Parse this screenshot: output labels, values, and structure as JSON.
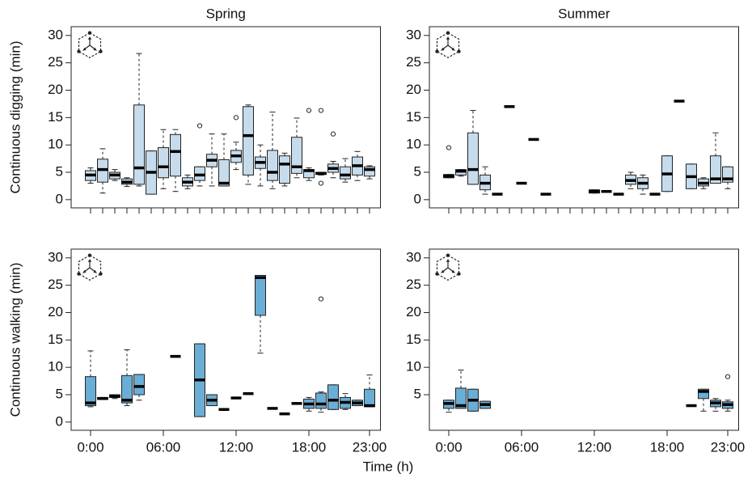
{
  "chart_data": [
    {
      "type": "box",
      "title": "Spring",
      "ylabel": "Continuous digging (min)",
      "color": "#c6dcec",
      "xlim": [
        -1.6,
        23.9
      ],
      "xticks": [
        0,
        1,
        2,
        3,
        4,
        5,
        6,
        7,
        8,
        9,
        10,
        11,
        12,
        13,
        14,
        15,
        16,
        17,
        18,
        19,
        20,
        21,
        22,
        23
      ],
      "show_xtick_labels": false,
      "ylim": [
        -1.5,
        31.6
      ],
      "yticks": [
        0,
        5,
        10,
        15,
        20,
        25,
        30
      ],
      "boxes": [
        {
          "x": 0,
          "low": 3,
          "q1": 3.5,
          "median": 4.5,
          "q3": 5.3,
          "high": 5.8
        },
        {
          "x": 1,
          "low": 1.2,
          "q1": 3.2,
          "median": 5.5,
          "q3": 7.4,
          "high": 9.3
        },
        {
          "x": 2,
          "low": 3.5,
          "q1": 3.8,
          "median": 4.5,
          "q3": 5,
          "high": 5.5
        },
        {
          "x": 3,
          "low": 2.4,
          "q1": 2.8,
          "median": 3.2,
          "q3": 3.8,
          "high": 4
        },
        {
          "x": 4,
          "low": 2.5,
          "q1": 2.8,
          "median": 5.8,
          "q3": 17.3,
          "high": 26.7
        },
        {
          "x": 5,
          "low": 1,
          "q1": 1,
          "median": 5,
          "q3": 8.9,
          "high": 8.9
        },
        {
          "x": 6,
          "low": 2,
          "q1": 4,
          "median": 6,
          "q3": 9.5,
          "high": 12.8
        },
        {
          "x": 7,
          "low": 1.5,
          "q1": 4.3,
          "median": 8.8,
          "q3": 11.9,
          "high": 12.8
        },
        {
          "x": 8,
          "low": 2,
          "q1": 2.5,
          "median": 3.2,
          "q3": 4,
          "high": 4.5
        },
        {
          "x": 9,
          "low": 2.5,
          "q1": 3.5,
          "median": 4.5,
          "q3": 6,
          "high": 6,
          "outliers": [
            13.5
          ]
        },
        {
          "x": 10,
          "low": 2.5,
          "q1": 6,
          "median": 7.2,
          "q3": 8.3,
          "high": 12
        },
        {
          "x": 11,
          "low": 2.5,
          "q1": 2.5,
          "median": 3,
          "q3": 7.3,
          "high": 12
        },
        {
          "x": 12,
          "low": 5.5,
          "q1": 6.8,
          "median": 8,
          "q3": 9,
          "high": 10.5,
          "outliers": [
            15
          ]
        },
        {
          "x": 13,
          "low": 2.8,
          "q1": 4.5,
          "median": 11.7,
          "q3": 17,
          "high": 17.3
        },
        {
          "x": 14,
          "low": 2.5,
          "q1": 5.7,
          "median": 6.8,
          "q3": 7.8,
          "high": 10
        },
        {
          "x": 15,
          "low": 2,
          "q1": 3.5,
          "median": 5,
          "q3": 9,
          "high": 16
        },
        {
          "x": 16,
          "low": 2.5,
          "q1": 3,
          "median": 6.5,
          "q3": 8,
          "high": 8.5
        },
        {
          "x": 17,
          "low": 4,
          "q1": 4.8,
          "median": 6,
          "q3": 11.4,
          "high": 14.9
        },
        {
          "x": 18,
          "low": 3.5,
          "q1": 4,
          "median": 5.3,
          "q3": 5.5,
          "high": 5.8,
          "outliers": [
            16.3
          ]
        },
        {
          "x": 19,
          "low": 4.5,
          "q1": 4.6,
          "median": 4.8,
          "q3": 5,
          "high": 5,
          "outliers": [
            16.3,
            3
          ]
        },
        {
          "x": 20,
          "low": 4,
          "q1": 5,
          "median": 5.7,
          "q3": 6.5,
          "high": 7,
          "outliers": [
            12
          ]
        },
        {
          "x": 21,
          "low": 3.2,
          "q1": 3.8,
          "median": 4.5,
          "q3": 6,
          "high": 7.5
        },
        {
          "x": 22,
          "low": 3.5,
          "q1": 4.5,
          "median": 6.2,
          "q3": 7.8,
          "high": 8.8
        },
        {
          "x": 23,
          "low": 3.8,
          "q1": 4.3,
          "median": 5.5,
          "q3": 6,
          "high": 6.2
        }
      ]
    },
    {
      "type": "box",
      "title": "Summer",
      "color": "#c6dcec",
      "xlim": [
        -1.6,
        23.9
      ],
      "xticks": [
        0,
        1,
        2,
        3,
        4,
        5,
        6,
        7,
        8,
        9,
        10,
        11,
        12,
        13,
        14,
        15,
        16,
        17,
        18,
        19,
        20,
        21,
        22,
        23
      ],
      "show_xtick_labels": false,
      "ylim": [
        -1.5,
        31.6
      ],
      "yticks": [
        0,
        5,
        10,
        15,
        20,
        25,
        30
      ],
      "boxes": [
        {
          "x": 0,
          "low": 4,
          "q1": 4,
          "median": 4.3,
          "q3": 4.6,
          "high": 4.6,
          "outliers": [
            9.5
          ]
        },
        {
          "x": 1,
          "low": 4.3,
          "q1": 4.5,
          "median": 5.2,
          "q3": 5.5,
          "high": 5.5
        },
        {
          "x": 2,
          "low": 2.8,
          "q1": 2.8,
          "median": 5.5,
          "q3": 12.2,
          "high": 16.3
        },
        {
          "x": 3,
          "low": 1,
          "q1": 1.8,
          "median": 3,
          "q3": 4.5,
          "high": 6
        },
        {
          "x": 4,
          "low": 1,
          "q1": 1,
          "median": 1,
          "q3": 1,
          "high": 1
        },
        {
          "x": 5,
          "low": 17,
          "q1": 17,
          "median": 17,
          "q3": 17,
          "high": 17
        },
        {
          "x": 6,
          "low": 3,
          "q1": 3,
          "median": 3,
          "q3": 3,
          "high": 3
        },
        {
          "x": 7,
          "low": 11,
          "q1": 11,
          "median": 11,
          "q3": 11,
          "high": 11
        },
        {
          "x": 8,
          "low": 1,
          "q1": 1,
          "median": 1,
          "q3": 1,
          "high": 1
        },
        {
          "x": 12,
          "low": 1.2,
          "q1": 1.2,
          "median": 1.5,
          "q3": 1.8,
          "high": 1.8
        },
        {
          "x": 13,
          "low": 1.5,
          "q1": 1.5,
          "median": 1.5,
          "q3": 1.5,
          "high": 1.5
        },
        {
          "x": 14,
          "low": 1,
          "q1": 1,
          "median": 1,
          "q3": 1,
          "high": 1
        },
        {
          "x": 15,
          "low": 2,
          "q1": 2.8,
          "median": 3.5,
          "q3": 4.5,
          "high": 5
        },
        {
          "x": 16,
          "low": 1,
          "q1": 2,
          "median": 3,
          "q3": 4,
          "high": 4.5
        },
        {
          "x": 17,
          "low": 1,
          "q1": 1,
          "median": 1,
          "q3": 1,
          "high": 1
        },
        {
          "x": 18,
          "low": 1.5,
          "q1": 1.5,
          "median": 4.7,
          "q3": 8,
          "high": 8
        },
        {
          "x": 19,
          "low": 18,
          "q1": 18,
          "median": 18,
          "q3": 18,
          "high": 18
        },
        {
          "x": 20,
          "low": 2,
          "q1": 2,
          "median": 4.2,
          "q3": 6.5,
          "high": 6.5
        },
        {
          "x": 21,
          "low": 2,
          "q1": 2.5,
          "median": 3,
          "q3": 3.8,
          "high": 4
        },
        {
          "x": 22,
          "low": 3,
          "q1": 3,
          "median": 3.8,
          "q3": 8,
          "high": 12.2
        },
        {
          "x": 23,
          "low": 2,
          "q1": 3.2,
          "median": 3.8,
          "q3": 6,
          "high": 6
        }
      ]
    },
    {
      "type": "box",
      "ylabel": "Continuous walking (min)",
      "xlabel": "Time (h)",
      "color": "#6aaed6",
      "xlim": [
        -1.6,
        23.9
      ],
      "xticks": [
        {
          "value": 0,
          "label": "0:00"
        },
        {
          "value": 6,
          "label": "06:00"
        },
        {
          "value": 12,
          "label": "12:00"
        },
        {
          "value": 18,
          "label": "18:00"
        },
        {
          "value": 23,
          "label": "23:00"
        }
      ],
      "show_xtick_labels": true,
      "ylim": [
        -1.5,
        31.6
      ],
      "yticks": [
        0,
        5,
        10,
        15,
        20,
        25,
        30
      ],
      "boxes": [
        {
          "x": 0,
          "low": 2.8,
          "q1": 3,
          "median": 3.5,
          "q3": 8.3,
          "high": 13
        },
        {
          "x": 1,
          "low": 4.2,
          "q1": 4.2,
          "median": 4.3,
          "q3": 4.5,
          "high": 4.5
        },
        {
          "x": 2,
          "low": 4.3,
          "q1": 4.5,
          "median": 4.7,
          "q3": 5,
          "high": 5
        },
        {
          "x": 3,
          "low": 3,
          "q1": 3.5,
          "median": 4,
          "q3": 8.5,
          "high": 13.2
        },
        {
          "x": 4,
          "low": 4,
          "q1": 5,
          "median": 6.5,
          "q3": 8.7,
          "high": 8.7
        },
        {
          "x": 7,
          "low": 12,
          "q1": 12,
          "median": 12,
          "q3": 12,
          "high": 12
        },
        {
          "x": 9,
          "low": 1,
          "q1": 1,
          "median": 7.7,
          "q3": 14.3,
          "high": 14.3
        },
        {
          "x": 10,
          "low": 3,
          "q1": 3,
          "median": 4,
          "q3": 5,
          "high": 5
        },
        {
          "x": 11,
          "low": 2.3,
          "q1": 2.3,
          "median": 2.3,
          "q3": 2.3,
          "high": 2.3
        },
        {
          "x": 12,
          "low": 4.4,
          "q1": 4.4,
          "median": 4.4,
          "q3": 4.4,
          "high": 4.4
        },
        {
          "x": 13,
          "low": 5.2,
          "q1": 5.2,
          "median": 5.2,
          "q3": 5.2,
          "high": 5.2
        },
        {
          "x": 14,
          "low": 12.6,
          "q1": 19.5,
          "median": 26.4,
          "q3": 26.8,
          "high": 26.8
        },
        {
          "x": 15,
          "low": 2.5,
          "q1": 2.5,
          "median": 2.5,
          "q3": 2.5,
          "high": 2.5
        },
        {
          "x": 16,
          "low": 1.5,
          "q1": 1.5,
          "median": 1.5,
          "q3": 1.5,
          "high": 1.5
        },
        {
          "x": 17,
          "low": 3.4,
          "q1": 3.4,
          "median": 3.4,
          "q3": 3.4,
          "high": 3.4
        },
        {
          "x": 18,
          "low": 2,
          "q1": 2.5,
          "median": 3.3,
          "q3": 4.2,
          "high": 4.5
        },
        {
          "x": 19,
          "low": 1.8,
          "q1": 2.5,
          "median": 3.3,
          "q3": 5.3,
          "high": 5.5,
          "outliers": [
            22.5
          ]
        },
        {
          "x": 20,
          "low": 2.3,
          "q1": 2.3,
          "median": 4,
          "q3": 6.8,
          "high": 6.8
        },
        {
          "x": 21,
          "low": 2.3,
          "q1": 2.5,
          "median": 3.6,
          "q3": 4.5,
          "high": 5.2
        },
        {
          "x": 22,
          "low": 3,
          "q1": 3,
          "median": 3.5,
          "q3": 4,
          "high": 4
        },
        {
          "x": 23,
          "low": 2.8,
          "q1": 2.8,
          "median": 3,
          "q3": 6,
          "high": 8.6
        }
      ]
    },
    {
      "type": "box",
      "color": "#6aaed6",
      "xlim": [
        -1.6,
        23.9
      ],
      "xticks": [
        {
          "value": 0,
          "label": "0:00"
        },
        {
          "value": 6,
          "label": "06:00"
        },
        {
          "value": 12,
          "label": "12:00"
        },
        {
          "value": 18,
          "label": "18:00"
        },
        {
          "value": 23,
          "label": "23:00"
        }
      ],
      "show_xtick_labels": true,
      "ylim": [
        -1.5,
        31.6
      ],
      "yticks": [
        5,
        10,
        15,
        20,
        25,
        30
      ],
      "boxes": [
        {
          "x": 0,
          "low": 1.8,
          "q1": 2.5,
          "median": 3.4,
          "q3": 4,
          "high": 4
        },
        {
          "x": 1,
          "low": 2.5,
          "q1": 2.5,
          "median": 3,
          "q3": 6.2,
          "high": 9.5
        },
        {
          "x": 2,
          "low": 2,
          "q1": 2,
          "median": 4,
          "q3": 6,
          "high": 6
        },
        {
          "x": 3,
          "low": 2.5,
          "q1": 2.5,
          "median": 3.2,
          "q3": 3.8,
          "high": 3.8
        },
        {
          "x": 20,
          "low": 3,
          "q1": 3,
          "median": 3,
          "q3": 3,
          "high": 3
        },
        {
          "x": 21,
          "low": 2,
          "q1": 4.3,
          "median": 5.6,
          "q3": 6,
          "high": 6
        },
        {
          "x": 22,
          "low": 2,
          "q1": 2.8,
          "median": 3.5,
          "q3": 4,
          "high": 4.3
        },
        {
          "x": 23,
          "low": 2,
          "q1": 2.5,
          "median": 3.2,
          "q3": 3.7,
          "high": 4,
          "outliers": [
            8.3
          ]
        }
      ]
    }
  ]
}
